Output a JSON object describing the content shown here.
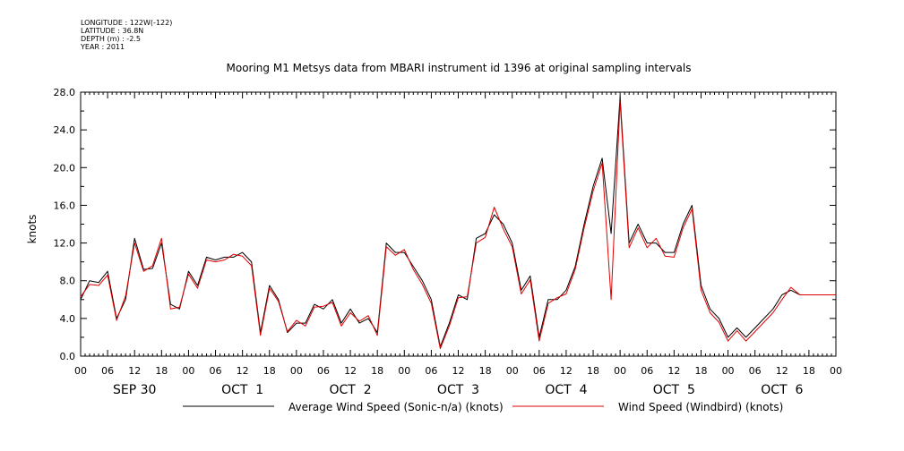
{
  "header": {
    "longitude": "LONGITUDE : 122W(-122)",
    "latitude": "LATITUDE : 36.8N",
    "depth": "DEPTH (m) : -2.5",
    "year": "YEAR : 2011"
  },
  "chart_data": {
    "type": "line",
    "title": "Mooring M1 Metsys data from MBARI instrument id 1396 at original sampling intervals",
    "ylabel": "knots",
    "xlabel": "",
    "ylim": [
      0,
      28
    ],
    "yticks": [
      "0.0",
      "4.0",
      "8.0",
      "12.0",
      "16.0",
      "20.0",
      "24.0",
      "28.0"
    ],
    "xlim_hours": [
      0,
      168
    ],
    "hour_ticks": [
      "00",
      "06",
      "12",
      "18",
      "00",
      "06",
      "12",
      "18",
      "00",
      "06",
      "12",
      "18",
      "00",
      "06",
      "12",
      "18",
      "00",
      "06",
      "12",
      "18",
      "00",
      "06",
      "12",
      "18",
      "00",
      "06",
      "12",
      "18",
      "00"
    ],
    "day_labels": [
      "SEP 30",
      "OCT  1",
      "OCT  2",
      "OCT  3",
      "OCT  4",
      "OCT  5",
      "OCT  6"
    ],
    "grid": false,
    "legend_position": "bottom",
    "series": [
      {
        "name": "Average Wind Speed (Sonic-n/a) (knots)",
        "color": "#000000",
        "x": [
          0,
          2,
          4,
          6,
          8,
          10,
          12,
          14,
          16,
          18,
          20,
          22,
          24,
          26,
          28,
          30,
          32,
          34,
          36,
          38,
          40,
          42,
          44,
          46,
          48,
          50,
          52,
          54,
          56,
          58,
          60,
          62,
          64,
          66,
          68,
          70,
          72,
          74,
          76,
          78,
          80,
          82,
          84,
          86,
          88,
          90,
          92,
          94,
          96,
          98,
          100,
          102,
          104,
          106,
          108,
          110,
          112,
          114,
          116,
          118,
          120,
          122,
          124,
          126,
          128,
          130,
          132,
          134,
          136,
          138,
          140,
          142,
          144,
          146,
          148,
          150,
          152,
          154,
          156,
          158,
          160,
          162,
          164,
          166,
          168
        ],
        "y": [
          6.0,
          8.0,
          7.8,
          9.0,
          4.0,
          6.0,
          12.5,
          9.2,
          9.3,
          12.0,
          5.5,
          5.0,
          9.0,
          7.5,
          10.5,
          10.2,
          10.5,
          10.5,
          11.0,
          10.0,
          2.5,
          7.5,
          6.0,
          2.5,
          3.5,
          3.5,
          5.5,
          5.0,
          6.0,
          3.5,
          5.0,
          3.5,
          4.0,
          2.5,
          12.0,
          11.0,
          11.0,
          9.5,
          8.0,
          6.0,
          1.0,
          3.5,
          6.5,
          6.0,
          12.5,
          13.0,
          15.0,
          14.0,
          12.0,
          7.0,
          8.5,
          2.0,
          6.0,
          6.0,
          7.0,
          9.5,
          14.0,
          18.0,
          21.0,
          13.0,
          27.5,
          12.0,
          14.0,
          12.0,
          12.0,
          11.0,
          11.0,
          14.0,
          16.0,
          7.5,
          5.0,
          4.0,
          2.0,
          3.0,
          2.0,
          3.0,
          4.0,
          5.0,
          6.5,
          7.0,
          6.5,
          6.5,
          6.5,
          6.5,
          6.5
        ]
      },
      {
        "name": "Wind Speed (Windbird) (knots)",
        "color": "#e00000",
        "x": [
          0,
          2,
          4,
          6,
          8,
          10,
          12,
          14,
          16,
          18,
          20,
          22,
          24,
          26,
          28,
          30,
          32,
          34,
          36,
          38,
          40,
          42,
          44,
          46,
          48,
          50,
          52,
          54,
          56,
          58,
          60,
          62,
          64,
          66,
          68,
          70,
          72,
          74,
          76,
          78,
          80,
          82,
          84,
          86,
          88,
          90,
          92,
          94,
          96,
          98,
          100,
          102,
          104,
          106,
          108,
          110,
          112,
          114,
          116,
          118,
          120,
          122,
          124,
          126,
          128,
          130,
          132,
          134,
          136,
          138,
          140,
          142,
          144,
          146,
          148,
          150,
          152,
          154,
          156,
          158,
          160,
          162,
          164,
          166,
          168
        ],
        "y": [
          6.3,
          7.6,
          7.5,
          8.6,
          3.8,
          6.4,
          12.0,
          9.0,
          9.6,
          12.5,
          5.0,
          5.2,
          8.7,
          7.2,
          10.2,
          10.0,
          10.2,
          10.8,
          10.6,
          9.6,
          2.2,
          7.2,
          5.8,
          2.6,
          3.8,
          3.2,
          5.2,
          5.3,
          5.7,
          3.2,
          4.6,
          3.7,
          4.3,
          2.2,
          11.6,
          10.7,
          11.3,
          9.2,
          7.6,
          5.6,
          0.8,
          3.2,
          6.2,
          6.3,
          12.0,
          12.6,
          15.8,
          13.5,
          11.6,
          6.6,
          8.1,
          1.6,
          5.6,
          6.2,
          6.6,
          9.2,
          13.6,
          17.5,
          20.5,
          6.0,
          27.0,
          11.5,
          13.6,
          11.5,
          12.5,
          10.6,
          10.5,
          13.6,
          15.6,
          7.0,
          4.6,
          3.6,
          1.6,
          2.7,
          1.6,
          2.6,
          3.6,
          4.6,
          6.0,
          7.3,
          6.5,
          6.5,
          6.5,
          6.5,
          6.5
        ]
      }
    ]
  }
}
